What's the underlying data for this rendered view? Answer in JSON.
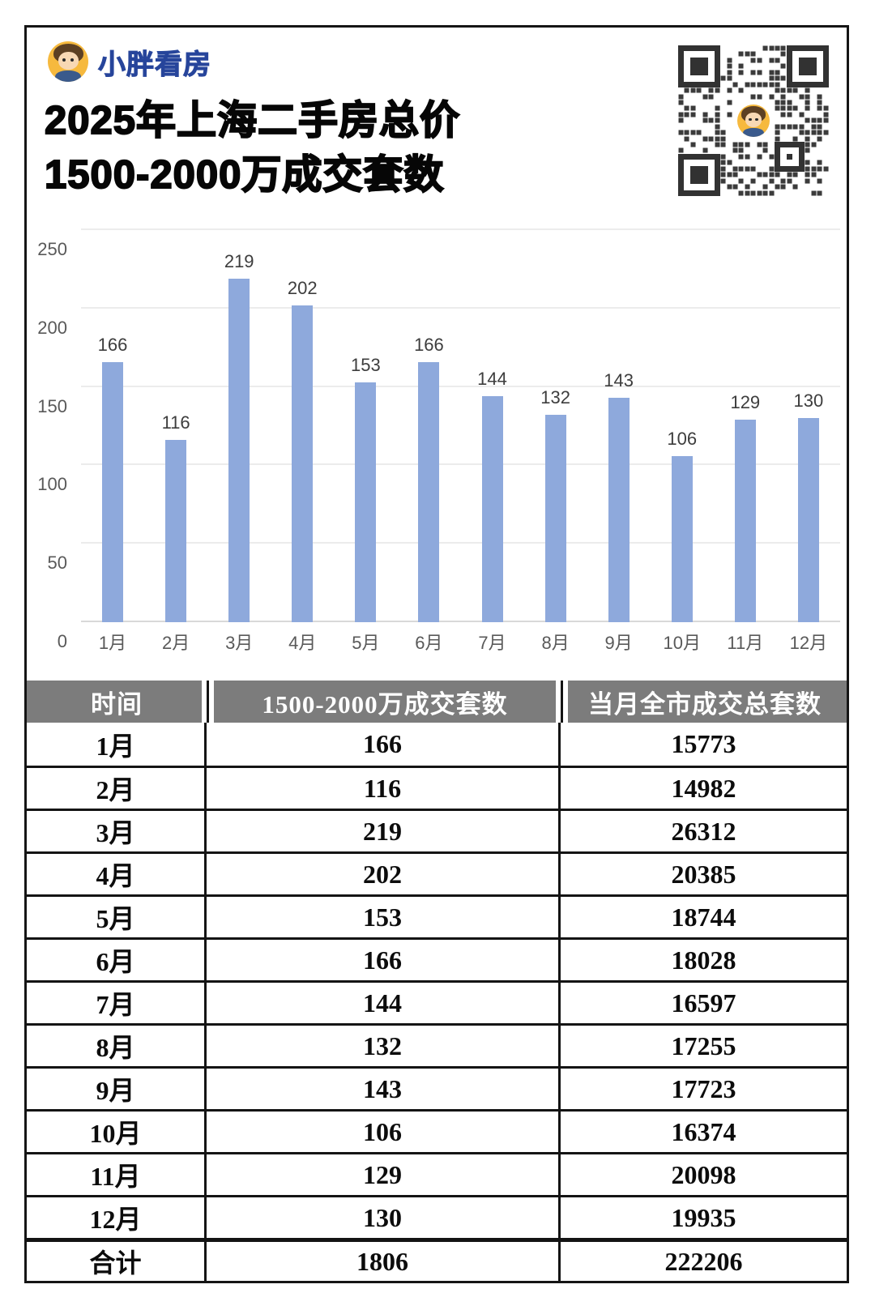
{
  "brand": {
    "name": "小胖看房"
  },
  "title": {
    "line1": "2025年上海二手房总价",
    "line2": "1500-2000万成交套数"
  },
  "chart_data": {
    "type": "bar",
    "title": "2025年上海二手房总价1500-2000万成交套数",
    "categories": [
      "1月",
      "2月",
      "3月",
      "4月",
      "5月",
      "6月",
      "7月",
      "8月",
      "9月",
      "10月",
      "11月",
      "12月"
    ],
    "values": [
      166,
      116,
      219,
      202,
      153,
      166,
      144,
      132,
      143,
      106,
      129,
      130
    ],
    "xlabel": "",
    "ylabel": "",
    "ylim": [
      0,
      250
    ],
    "yticks": [
      0,
      50,
      100,
      150,
      200,
      250
    ],
    "grid": true,
    "legend": "none",
    "bar_color": "#8ea9dc"
  },
  "table": {
    "headers": [
      "时间",
      "1500-2000万成交套数",
      "当月全市成交总套数"
    ],
    "rows": [
      [
        "1月",
        "166",
        "15773"
      ],
      [
        "2月",
        "116",
        "14982"
      ],
      [
        "3月",
        "219",
        "26312"
      ],
      [
        "4月",
        "202",
        "20385"
      ],
      [
        "5月",
        "153",
        "18744"
      ],
      [
        "6月",
        "166",
        "18028"
      ],
      [
        "7月",
        "144",
        "16597"
      ],
      [
        "8月",
        "132",
        "17255"
      ],
      [
        "9月",
        "143",
        "17723"
      ],
      [
        "10月",
        "106",
        "16374"
      ],
      [
        "11月",
        "129",
        "20098"
      ],
      [
        "12月",
        "130",
        "19935"
      ],
      [
        "合计",
        "1806",
        "222206"
      ]
    ],
    "total_row_label": "合计"
  },
  "colors": {
    "bar": "#8ea9dc",
    "brand_blue": "#27459b",
    "header_gray": "#7c7c7c",
    "avatar_yellow": "#f6b93e",
    "qr_dark": "#3b3b3b"
  }
}
